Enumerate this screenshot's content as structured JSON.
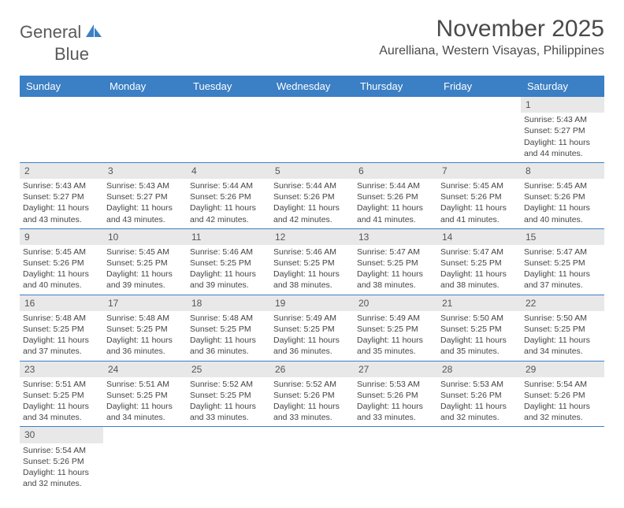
{
  "logo": {
    "text1": "General",
    "text2": "Blue"
  },
  "header": {
    "month_title": "November 2025",
    "location": "Aurelliana, Western Visayas, Philippines"
  },
  "colors": {
    "header_bar": "#3b7fc4",
    "daynum_bg": "#e8e8e8",
    "text": "#444444"
  },
  "weekdays": [
    "Sunday",
    "Monday",
    "Tuesday",
    "Wednesday",
    "Thursday",
    "Friday",
    "Saturday"
  ],
  "weeks": [
    [
      {
        "day": "",
        "sunrise": "",
        "sunset": "",
        "daylight": ""
      },
      {
        "day": "",
        "sunrise": "",
        "sunset": "",
        "daylight": ""
      },
      {
        "day": "",
        "sunrise": "",
        "sunset": "",
        "daylight": ""
      },
      {
        "day": "",
        "sunrise": "",
        "sunset": "",
        "daylight": ""
      },
      {
        "day": "",
        "sunrise": "",
        "sunset": "",
        "daylight": ""
      },
      {
        "day": "",
        "sunrise": "",
        "sunset": "",
        "daylight": ""
      },
      {
        "day": "1",
        "sunrise": "Sunrise: 5:43 AM",
        "sunset": "Sunset: 5:27 PM",
        "daylight": "Daylight: 11 hours and 44 minutes."
      }
    ],
    [
      {
        "day": "2",
        "sunrise": "Sunrise: 5:43 AM",
        "sunset": "Sunset: 5:27 PM",
        "daylight": "Daylight: 11 hours and 43 minutes."
      },
      {
        "day": "3",
        "sunrise": "Sunrise: 5:43 AM",
        "sunset": "Sunset: 5:27 PM",
        "daylight": "Daylight: 11 hours and 43 minutes."
      },
      {
        "day": "4",
        "sunrise": "Sunrise: 5:44 AM",
        "sunset": "Sunset: 5:26 PM",
        "daylight": "Daylight: 11 hours and 42 minutes."
      },
      {
        "day": "5",
        "sunrise": "Sunrise: 5:44 AM",
        "sunset": "Sunset: 5:26 PM",
        "daylight": "Daylight: 11 hours and 42 minutes."
      },
      {
        "day": "6",
        "sunrise": "Sunrise: 5:44 AM",
        "sunset": "Sunset: 5:26 PM",
        "daylight": "Daylight: 11 hours and 41 minutes."
      },
      {
        "day": "7",
        "sunrise": "Sunrise: 5:45 AM",
        "sunset": "Sunset: 5:26 PM",
        "daylight": "Daylight: 11 hours and 41 minutes."
      },
      {
        "day": "8",
        "sunrise": "Sunrise: 5:45 AM",
        "sunset": "Sunset: 5:26 PM",
        "daylight": "Daylight: 11 hours and 40 minutes."
      }
    ],
    [
      {
        "day": "9",
        "sunrise": "Sunrise: 5:45 AM",
        "sunset": "Sunset: 5:26 PM",
        "daylight": "Daylight: 11 hours and 40 minutes."
      },
      {
        "day": "10",
        "sunrise": "Sunrise: 5:45 AM",
        "sunset": "Sunset: 5:25 PM",
        "daylight": "Daylight: 11 hours and 39 minutes."
      },
      {
        "day": "11",
        "sunrise": "Sunrise: 5:46 AM",
        "sunset": "Sunset: 5:25 PM",
        "daylight": "Daylight: 11 hours and 39 minutes."
      },
      {
        "day": "12",
        "sunrise": "Sunrise: 5:46 AM",
        "sunset": "Sunset: 5:25 PM",
        "daylight": "Daylight: 11 hours and 38 minutes."
      },
      {
        "day": "13",
        "sunrise": "Sunrise: 5:47 AM",
        "sunset": "Sunset: 5:25 PM",
        "daylight": "Daylight: 11 hours and 38 minutes."
      },
      {
        "day": "14",
        "sunrise": "Sunrise: 5:47 AM",
        "sunset": "Sunset: 5:25 PM",
        "daylight": "Daylight: 11 hours and 38 minutes."
      },
      {
        "day": "15",
        "sunrise": "Sunrise: 5:47 AM",
        "sunset": "Sunset: 5:25 PM",
        "daylight": "Daylight: 11 hours and 37 minutes."
      }
    ],
    [
      {
        "day": "16",
        "sunrise": "Sunrise: 5:48 AM",
        "sunset": "Sunset: 5:25 PM",
        "daylight": "Daylight: 11 hours and 37 minutes."
      },
      {
        "day": "17",
        "sunrise": "Sunrise: 5:48 AM",
        "sunset": "Sunset: 5:25 PM",
        "daylight": "Daylight: 11 hours and 36 minutes."
      },
      {
        "day": "18",
        "sunrise": "Sunrise: 5:48 AM",
        "sunset": "Sunset: 5:25 PM",
        "daylight": "Daylight: 11 hours and 36 minutes."
      },
      {
        "day": "19",
        "sunrise": "Sunrise: 5:49 AM",
        "sunset": "Sunset: 5:25 PM",
        "daylight": "Daylight: 11 hours and 36 minutes."
      },
      {
        "day": "20",
        "sunrise": "Sunrise: 5:49 AM",
        "sunset": "Sunset: 5:25 PM",
        "daylight": "Daylight: 11 hours and 35 minutes."
      },
      {
        "day": "21",
        "sunrise": "Sunrise: 5:50 AM",
        "sunset": "Sunset: 5:25 PM",
        "daylight": "Daylight: 11 hours and 35 minutes."
      },
      {
        "day": "22",
        "sunrise": "Sunrise: 5:50 AM",
        "sunset": "Sunset: 5:25 PM",
        "daylight": "Daylight: 11 hours and 34 minutes."
      }
    ],
    [
      {
        "day": "23",
        "sunrise": "Sunrise: 5:51 AM",
        "sunset": "Sunset: 5:25 PM",
        "daylight": "Daylight: 11 hours and 34 minutes."
      },
      {
        "day": "24",
        "sunrise": "Sunrise: 5:51 AM",
        "sunset": "Sunset: 5:25 PM",
        "daylight": "Daylight: 11 hours and 34 minutes."
      },
      {
        "day": "25",
        "sunrise": "Sunrise: 5:52 AM",
        "sunset": "Sunset: 5:25 PM",
        "daylight": "Daylight: 11 hours and 33 minutes."
      },
      {
        "day": "26",
        "sunrise": "Sunrise: 5:52 AM",
        "sunset": "Sunset: 5:26 PM",
        "daylight": "Daylight: 11 hours and 33 minutes."
      },
      {
        "day": "27",
        "sunrise": "Sunrise: 5:53 AM",
        "sunset": "Sunset: 5:26 PM",
        "daylight": "Daylight: 11 hours and 33 minutes."
      },
      {
        "day": "28",
        "sunrise": "Sunrise: 5:53 AM",
        "sunset": "Sunset: 5:26 PM",
        "daylight": "Daylight: 11 hours and 32 minutes."
      },
      {
        "day": "29",
        "sunrise": "Sunrise: 5:54 AM",
        "sunset": "Sunset: 5:26 PM",
        "daylight": "Daylight: 11 hours and 32 minutes."
      }
    ],
    [
      {
        "day": "30",
        "sunrise": "Sunrise: 5:54 AM",
        "sunset": "Sunset: 5:26 PM",
        "daylight": "Daylight: 11 hours and 32 minutes."
      },
      {
        "day": "",
        "sunrise": "",
        "sunset": "",
        "daylight": ""
      },
      {
        "day": "",
        "sunrise": "",
        "sunset": "",
        "daylight": ""
      },
      {
        "day": "",
        "sunrise": "",
        "sunset": "",
        "daylight": ""
      },
      {
        "day": "",
        "sunrise": "",
        "sunset": "",
        "daylight": ""
      },
      {
        "day": "",
        "sunrise": "",
        "sunset": "",
        "daylight": ""
      },
      {
        "day": "",
        "sunrise": "",
        "sunset": "",
        "daylight": ""
      }
    ]
  ]
}
